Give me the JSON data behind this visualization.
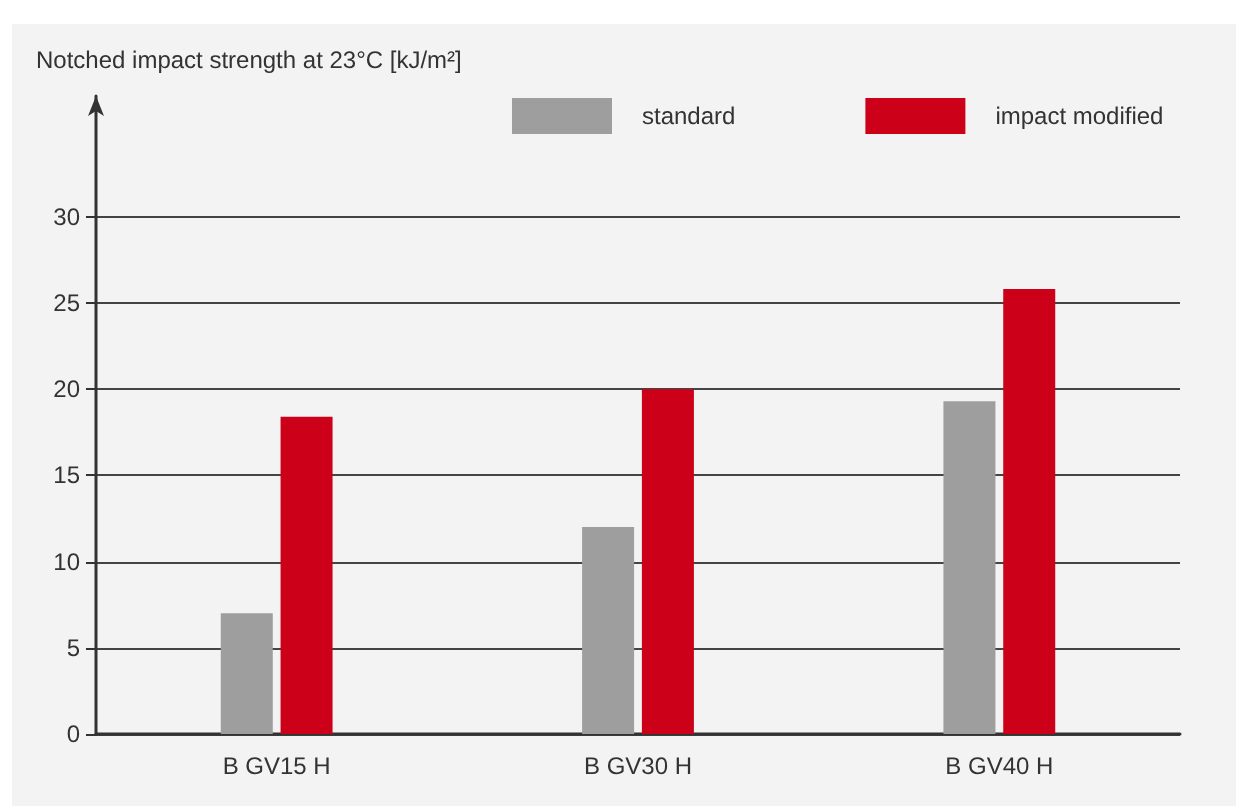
{
  "chart_data": {
    "type": "bar",
    "ylabel": "Notched impact strength at 23°C [kJ/m²]",
    "categories": [
      "B GV15 H",
      "B GV30 H",
      "B GV40 H"
    ],
    "series": [
      {
        "name": "standard",
        "color": "#9d9e9d",
        "values": [
          7,
          12,
          19.3
        ]
      },
      {
        "name": "impact modified",
        "color": "#cc0019",
        "values": [
          18.4,
          20,
          25.8
        ]
      }
    ],
    "ylim": [
      0,
      37
    ],
    "yticks": [
      0,
      5,
      10,
      15,
      20,
      25,
      30
    ],
    "grid": "y",
    "legend": "top"
  }
}
